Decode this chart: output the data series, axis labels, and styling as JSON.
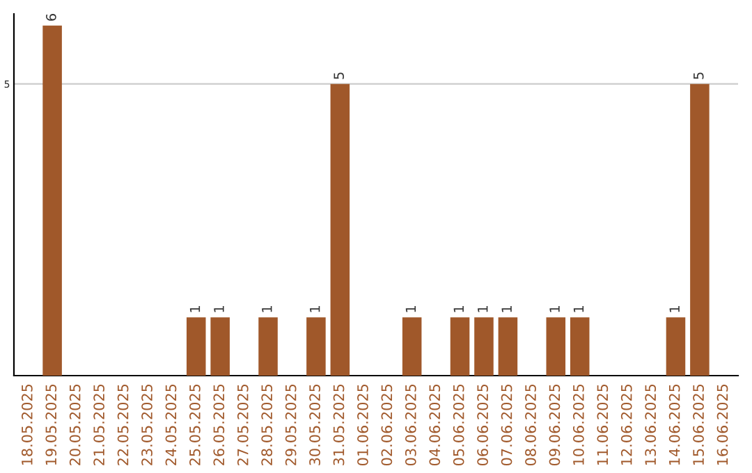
{
  "chart_data": {
    "type": "bar",
    "categories": [
      "18.05.2025",
      "19.05.2025",
      "20.05.2025",
      "21.05.2025",
      "22.05.2025",
      "23.05.2025",
      "24.05.2025",
      "25.05.2025",
      "26.05.2025",
      "27.05.2025",
      "28.05.2025",
      "29.05.2025",
      "30.05.2025",
      "31.05.2025",
      "01.06.2025",
      "02.06.2025",
      "03.06.2025",
      "04.06.2025",
      "05.06.2025",
      "06.06.2025",
      "07.06.2025",
      "08.06.2025",
      "09.06.2025",
      "10.06.2025",
      "11.06.2025",
      "12.06.2025",
      "13.06.2025",
      "14.06.2025",
      "15.06.2025",
      "16.06.2025"
    ],
    "values": [
      0,
      6,
      0,
      0,
      0,
      0,
      0,
      1,
      1,
      0,
      1,
      0,
      1,
      5,
      0,
      0,
      1,
      0,
      1,
      1,
      1,
      0,
      1,
      1,
      0,
      0,
      0,
      1,
      5,
      0
    ],
    "value_labels": [
      null,
      "6",
      null,
      null,
      null,
      null,
      null,
      "1",
      "1",
      null,
      "1",
      null,
      "1",
      "5",
      null,
      null,
      "1",
      null,
      "1",
      "1",
      "1",
      null,
      "1",
      "1",
      null,
      null,
      null,
      "1",
      "5",
      null
    ],
    "color": "#a0582a",
    "ylim": [
      0,
      6.2
    ],
    "yticks": [
      5
    ],
    "grid": "y"
  }
}
